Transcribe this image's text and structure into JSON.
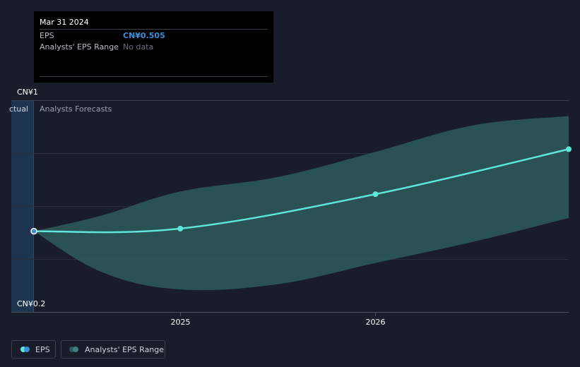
{
  "tooltip": {
    "date": "Mar 31 2024",
    "eps_label": "EPS",
    "eps_value": "CN¥0.505",
    "range_label": "Analysts' EPS Range",
    "range_value": "No data"
  },
  "labels": {
    "actual": "ctual",
    "forecasts": "Analysts Forecasts"
  },
  "legend": {
    "eps": "EPS",
    "range": "Analysts' EPS Range"
  },
  "colors": {
    "background": "#181d29",
    "eps_line": "#5ee6d8",
    "range_fill": "#2e5a5c",
    "actual_band": "#1d3550",
    "eps_value": "#3a8fd8"
  },
  "chart_data": {
    "type": "line",
    "ylabel_top": "CN¥1",
    "ylabel_bottom": "CN¥0.2",
    "ylim": [
      0.2,
      1.0
    ],
    "x_ticks": [
      {
        "label": "2025",
        "x": 2025.0
      },
      {
        "label": "2026",
        "x": 2026.0
      }
    ],
    "xlim": [
      2024.25,
      2026.99
    ],
    "series": [
      {
        "name": "EPS",
        "x": [
          2024.25,
          2025.0,
          2026.0,
          2026.99
        ],
        "values": [
          0.505,
          0.515,
          0.645,
          0.815
        ]
      }
    ],
    "range": {
      "name": "Analysts' EPS Range",
      "x": [
        2024.25,
        2024.6,
        2025.0,
        2025.5,
        2026.0,
        2026.5,
        2026.99
      ],
      "low": [
        0.505,
        0.35,
        0.285,
        0.305,
        0.385,
        0.465,
        0.555
      ],
      "high": [
        0.505,
        0.565,
        0.655,
        0.71,
        0.805,
        0.905,
        0.94
      ]
    }
  }
}
